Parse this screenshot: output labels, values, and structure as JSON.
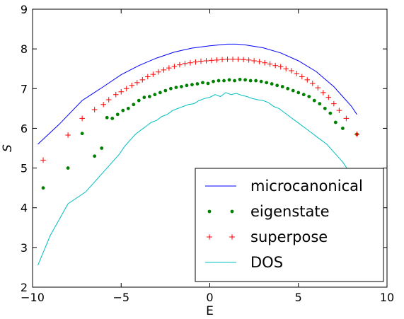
{
  "chart_data": {
    "type": "line",
    "xlabel": "E",
    "ylabel": "S",
    "xlim": [
      -10,
      10
    ],
    "ylim": [
      2,
      9
    ],
    "xticks": [
      -10,
      -5,
      0,
      5,
      10
    ],
    "yticks": [
      2,
      3,
      4,
      5,
      6,
      7,
      8,
      9
    ],
    "xtick_labels": [
      "−10",
      "−5",
      "0",
      "5",
      "10"
    ],
    "ytick_labels": [
      "2",
      "3",
      "4",
      "5",
      "6",
      "7",
      "8",
      "9"
    ],
    "grid": false,
    "legend_position": "lower-right",
    "series": [
      {
        "name": "microcanonical",
        "style": "line",
        "color": "#0000ff",
        "x": [
          -9.7,
          -8.5,
          -7.2,
          -6.0,
          -5.0,
          -4.0,
          -3.0,
          -2.0,
          -1.0,
          0.0,
          1.0,
          1.5,
          2.0,
          3.0,
          4.0,
          5.0,
          6.0,
          7.0,
          7.5,
          8.0,
          8.3
        ],
        "y": [
          5.6,
          6.1,
          6.7,
          7.05,
          7.35,
          7.58,
          7.77,
          7.92,
          8.02,
          8.08,
          8.12,
          8.12,
          8.1,
          8.03,
          7.9,
          7.7,
          7.43,
          7.05,
          6.8,
          6.55,
          6.35
        ]
      },
      {
        "name": "eigenstate",
        "style": "dots",
        "color": "#008000",
        "x": [
          -9.4,
          -8.0,
          -7.2,
          -6.5,
          -6.1,
          -5.8,
          -5.5,
          -5.2,
          -4.9,
          -4.6,
          -4.3,
          -4.0,
          -3.7,
          -3.4,
          -3.1,
          -2.8,
          -2.5,
          -2.2,
          -1.9,
          -1.6,
          -1.3,
          -1.0,
          -0.7,
          -0.4,
          -0.1,
          0.2,
          0.5,
          0.8,
          1.1,
          1.4,
          1.7,
          2.0,
          2.3,
          2.6,
          2.9,
          3.2,
          3.5,
          3.8,
          4.1,
          4.4,
          4.7,
          5.0,
          5.3,
          5.6,
          5.9,
          6.2,
          6.5,
          6.8,
          7.1,
          7.5,
          8.3
        ],
        "y": [
          4.5,
          5.0,
          5.87,
          5.3,
          5.5,
          6.27,
          6.25,
          6.35,
          6.45,
          6.5,
          6.6,
          6.7,
          6.78,
          6.8,
          6.85,
          6.9,
          6.95,
          7.0,
          7.03,
          7.05,
          7.08,
          7.1,
          7.12,
          7.15,
          7.13,
          7.18,
          7.2,
          7.2,
          7.22,
          7.2,
          7.23,
          7.22,
          7.2,
          7.2,
          7.18,
          7.15,
          7.12,
          7.08,
          7.05,
          7.0,
          6.95,
          6.9,
          6.85,
          6.8,
          6.7,
          6.62,
          6.5,
          6.38,
          6.15,
          6.0,
          5.85
        ]
      },
      {
        "name": "superpose",
        "style": "plus",
        "color": "#ff0000",
        "x": [
          -9.4,
          -8.0,
          -7.2,
          -6.5,
          -6.0,
          -5.7,
          -5.3,
          -5.0,
          -4.7,
          -4.4,
          -4.1,
          -3.8,
          -3.5,
          -3.2,
          -2.9,
          -2.6,
          -2.3,
          -2.0,
          -1.7,
          -1.4,
          -1.1,
          -0.8,
          -0.5,
          -0.2,
          0.1,
          0.4,
          0.7,
          1.0,
          1.3,
          1.6,
          1.9,
          2.2,
          2.5,
          2.8,
          3.1,
          3.4,
          3.7,
          4.0,
          4.3,
          4.6,
          4.9,
          5.2,
          5.5,
          5.8,
          6.1,
          6.4,
          6.7,
          7.0,
          7.3,
          7.7,
          8.3
        ],
        "y": [
          5.2,
          5.83,
          6.25,
          6.47,
          6.6,
          6.72,
          6.85,
          6.92,
          7.0,
          7.08,
          7.15,
          7.22,
          7.3,
          7.36,
          7.42,
          7.47,
          7.52,
          7.56,
          7.6,
          7.63,
          7.65,
          7.67,
          7.69,
          7.7,
          7.71,
          7.72,
          7.73,
          7.74,
          7.74,
          7.74,
          7.73,
          7.72,
          7.7,
          7.68,
          7.65,
          7.62,
          7.58,
          7.55,
          7.5,
          7.45,
          7.38,
          7.3,
          7.22,
          7.13,
          7.02,
          6.9,
          6.78,
          6.62,
          6.45,
          6.25,
          5.85
        ]
      },
      {
        "name": "DOS",
        "style": "line",
        "color": "#00bfbf",
        "x": [
          -9.7,
          -9.0,
          -8.0,
          -7.0,
          -6.0,
          -5.7,
          -5.4,
          -5.1,
          -4.8,
          -4.5,
          -4.2,
          -3.9,
          -3.6,
          -3.3,
          -3.0,
          -2.7,
          -2.4,
          -2.1,
          -1.8,
          -1.5,
          -1.2,
          -0.9,
          -0.6,
          -0.3,
          0.0,
          0.3,
          0.6,
          0.9,
          1.2,
          1.5,
          1.8,
          2.1,
          2.4,
          2.7,
          3.0,
          3.3,
          3.6,
          3.9,
          4.2,
          4.5,
          4.8,
          5.1,
          5.4,
          5.7,
          6.0,
          6.3,
          6.6,
          6.9,
          7.2,
          7.5,
          7.8
        ],
        "y": [
          2.55,
          3.3,
          4.1,
          4.4,
          4.9,
          5.05,
          5.2,
          5.35,
          5.55,
          5.7,
          5.85,
          5.95,
          6.05,
          6.15,
          6.2,
          6.3,
          6.35,
          6.45,
          6.5,
          6.55,
          6.6,
          6.62,
          6.7,
          6.75,
          6.78,
          6.85,
          6.8,
          6.9,
          6.85,
          6.88,
          6.83,
          6.8,
          6.75,
          6.72,
          6.7,
          6.65,
          6.55,
          6.5,
          6.4,
          6.3,
          6.2,
          6.1,
          6.0,
          5.9,
          5.8,
          5.7,
          5.6,
          5.45,
          5.3,
          5.15,
          4.95
        ]
      }
    ]
  }
}
